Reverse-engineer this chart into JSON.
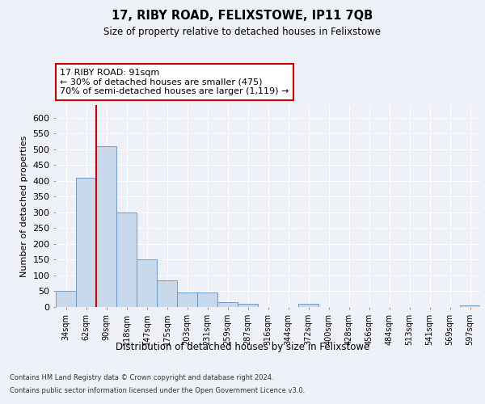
{
  "title": "17, RIBY ROAD, FELIXSTOWE, IP11 7QB",
  "subtitle": "Size of property relative to detached houses in Felixstowe",
  "xlabel": "Distribution of detached houses by size in Felixstowe",
  "ylabel": "Number of detached properties",
  "footer_line1": "Contains HM Land Registry data © Crown copyright and database right 2024.",
  "footer_line2": "Contains public sector information licensed under the Open Government Licence v3.0.",
  "annotation_line1": "17 RIBY ROAD: 91sqm",
  "annotation_line2": "← 30% of detached houses are smaller (475)",
  "annotation_line3": "70% of semi-detached houses are larger (1,119) →",
  "bar_color": "#c9d9ec",
  "bar_edge_color": "#6090c0",
  "vline_color": "#cc0000",
  "categories": [
    "34sqm",
    "62sqm",
    "90sqm",
    "118sqm",
    "147sqm",
    "175sqm",
    "203sqm",
    "231sqm",
    "259sqm",
    "287sqm",
    "316sqm",
    "344sqm",
    "372sqm",
    "400sqm",
    "428sqm",
    "456sqm",
    "484sqm",
    "513sqm",
    "541sqm",
    "569sqm",
    "597sqm"
  ],
  "bar_heights": [
    50,
    410,
    510,
    300,
    150,
    85,
    45,
    45,
    15,
    10,
    0,
    0,
    10,
    0,
    0,
    0,
    0,
    0,
    0,
    0,
    5
  ],
  "ylim": [
    0,
    640
  ],
  "yticks": [
    0,
    50,
    100,
    150,
    200,
    250,
    300,
    350,
    400,
    450,
    500,
    550,
    600
  ],
  "background_color": "#eef2f8",
  "plot_bg_color": "#eef2f8",
  "grid_color": "#ffffff",
  "box_color": "#cc0000"
}
